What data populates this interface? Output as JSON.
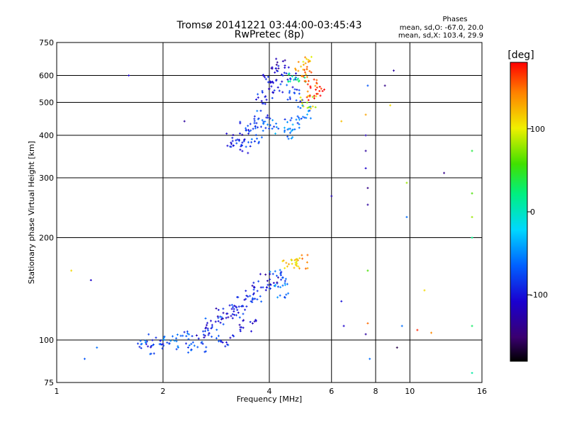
{
  "chart_data": {
    "type": "scatter",
    "title": "Tromsø 20141221 03:44:00-03:45:43",
    "subtitle": "RwPretec (8p)",
    "xlabel": "Frequency [MHz]",
    "ylabel": "Stationary phase Virtual Height [km]",
    "x_scale": "log",
    "y_scale": "log",
    "xlim": [
      1,
      16
    ],
    "ylim": [
      75,
      750
    ],
    "x_ticks": [
      1,
      2,
      4,
      6,
      8,
      10,
      16
    ],
    "y_ticks": [
      75,
      100,
      200,
      300,
      400,
      500,
      600,
      750
    ],
    "grid": true,
    "annotation": {
      "heading": "Phases",
      "line1": "mean, sd,O: -67.0, 20.0",
      "line2": "mean, sd,X: 103.4, 29.9"
    },
    "colorbar": {
      "label": "[deg]",
      "range": [
        -180,
        180
      ],
      "ticks": [
        100,
        0,
        -100
      ],
      "colormap": "black-purple-blue-cyan-green-yellow-red"
    },
    "clusters": [
      {
        "x": 3.2,
        "y": 385,
        "phase": -100
      },
      {
        "x": 3.4,
        "y": 370,
        "phase": -90
      },
      {
        "x": 3.6,
        "y": 395,
        "phase": -80
      },
      {
        "x": 3.5,
        "y": 420,
        "phase": -85
      },
      {
        "x": 3.8,
        "y": 450,
        "phase": -75
      },
      {
        "x": 4.0,
        "y": 430,
        "phase": -70
      },
      {
        "x": 3.9,
        "y": 520,
        "phase": -95
      },
      {
        "x": 4.0,
        "y": 600,
        "phase": -110
      },
      {
        "x": 4.2,
        "y": 560,
        "phase": -100
      },
      {
        "x": 4.3,
        "y": 640,
        "phase": -115
      },
      {
        "x": 4.5,
        "y": 580,
        "phase": -90
      },
      {
        "x": 4.7,
        "y": 520,
        "phase": -85
      },
      {
        "x": 4.8,
        "y": 600,
        "phase": 20
      },
      {
        "x": 5.0,
        "y": 650,
        "phase": 120
      },
      {
        "x": 5.2,
        "y": 620,
        "phase": 140
      },
      {
        "x": 5.3,
        "y": 560,
        "phase": 160
      },
      {
        "x": 5.4,
        "y": 530,
        "phase": 180
      },
      {
        "x": 5.2,
        "y": 500,
        "phase": 90
      },
      {
        "x": 5.0,
        "y": 470,
        "phase": -60
      },
      {
        "x": 4.6,
        "y": 430,
        "phase": -65
      },
      {
        "x": 4.4,
        "y": 410,
        "phase": -55
      },
      {
        "x": 1.8,
        "y": 95,
        "phase": -70
      },
      {
        "x": 1.9,
        "y": 100,
        "phase": -90
      },
      {
        "x": 2.1,
        "y": 98,
        "phase": -60
      },
      {
        "x": 2.3,
        "y": 102,
        "phase": -80
      },
      {
        "x": 2.6,
        "y": 106,
        "phase": -100
      },
      {
        "x": 2.8,
        "y": 112,
        "phase": -85
      },
      {
        "x": 3.0,
        "y": 118,
        "phase": -110
      },
      {
        "x": 3.2,
        "y": 122,
        "phase": -95
      },
      {
        "x": 3.4,
        "y": 128,
        "phase": -90
      },
      {
        "x": 3.6,
        "y": 135,
        "phase": -75
      },
      {
        "x": 3.8,
        "y": 142,
        "phase": -100
      },
      {
        "x": 4.0,
        "y": 150,
        "phase": -110
      },
      {
        "x": 4.2,
        "y": 155,
        "phase": -70
      },
      {
        "x": 4.4,
        "y": 140,
        "phase": -60
      },
      {
        "x": 4.6,
        "y": 165,
        "phase": 110
      },
      {
        "x": 4.9,
        "y": 170,
        "phase": 130
      },
      {
        "x": 3.5,
        "y": 110,
        "phase": -110
      },
      {
        "x": 3.0,
        "y": 100,
        "phase": -95
      },
      {
        "x": 2.5,
        "y": 96,
        "phase": -70
      }
    ],
    "scatter_points": [
      {
        "x": 1.2,
        "y": 88,
        "phase": -70
      },
      {
        "x": 1.1,
        "y": 160,
        "phase": 110
      },
      {
        "x": 1.25,
        "y": 150,
        "phase": -110
      },
      {
        "x": 1.3,
        "y": 95,
        "phase": -60
      },
      {
        "x": 1.6,
        "y": 600,
        "phase": -110
      },
      {
        "x": 2.3,
        "y": 440,
        "phase": -130
      },
      {
        "x": 6.0,
        "y": 265,
        "phase": -120
      },
      {
        "x": 6.4,
        "y": 440,
        "phase": 120
      },
      {
        "x": 6.4,
        "y": 130,
        "phase": -100
      },
      {
        "x": 6.5,
        "y": 110,
        "phase": -110
      },
      {
        "x": 7.5,
        "y": 400,
        "phase": -120
      },
      {
        "x": 7.5,
        "y": 360,
        "phase": -130
      },
      {
        "x": 7.5,
        "y": 320,
        "phase": -110
      },
      {
        "x": 7.6,
        "y": 280,
        "phase": -140
      },
      {
        "x": 7.6,
        "y": 250,
        "phase": -130
      },
      {
        "x": 7.5,
        "y": 460,
        "phase": 130
      },
      {
        "x": 7.6,
        "y": 560,
        "phase": -70
      },
      {
        "x": 7.6,
        "y": 160,
        "phase": 60
      },
      {
        "x": 7.6,
        "y": 112,
        "phase": 150
      },
      {
        "x": 7.5,
        "y": 104,
        "phase": -130
      },
      {
        "x": 7.7,
        "y": 88,
        "phase": -60
      },
      {
        "x": 8.5,
        "y": 560,
        "phase": -140
      },
      {
        "x": 8.8,
        "y": 490,
        "phase": 110
      },
      {
        "x": 9.0,
        "y": 620,
        "phase": -130
      },
      {
        "x": 9.2,
        "y": 95,
        "phase": -160
      },
      {
        "x": 9.5,
        "y": 110,
        "phase": -60
      },
      {
        "x": 9.8,
        "y": 290,
        "phase": 80
      },
      {
        "x": 9.8,
        "y": 230,
        "phase": -60
      },
      {
        "x": 10.5,
        "y": 107,
        "phase": 170
      },
      {
        "x": 11.0,
        "y": 140,
        "phase": 110
      },
      {
        "x": 11.5,
        "y": 105,
        "phase": 140
      },
      {
        "x": 12.5,
        "y": 310,
        "phase": -140
      },
      {
        "x": 15.0,
        "y": 360,
        "phase": 40
      },
      {
        "x": 15.0,
        "y": 270,
        "phase": 60
      },
      {
        "x": 15.0,
        "y": 230,
        "phase": 80
      },
      {
        "x": 15.0,
        "y": 200,
        "phase": 20
      },
      {
        "x": 15.0,
        "y": 110,
        "phase": 30
      },
      {
        "x": 15.0,
        "y": 80,
        "phase": 10
      }
    ]
  }
}
